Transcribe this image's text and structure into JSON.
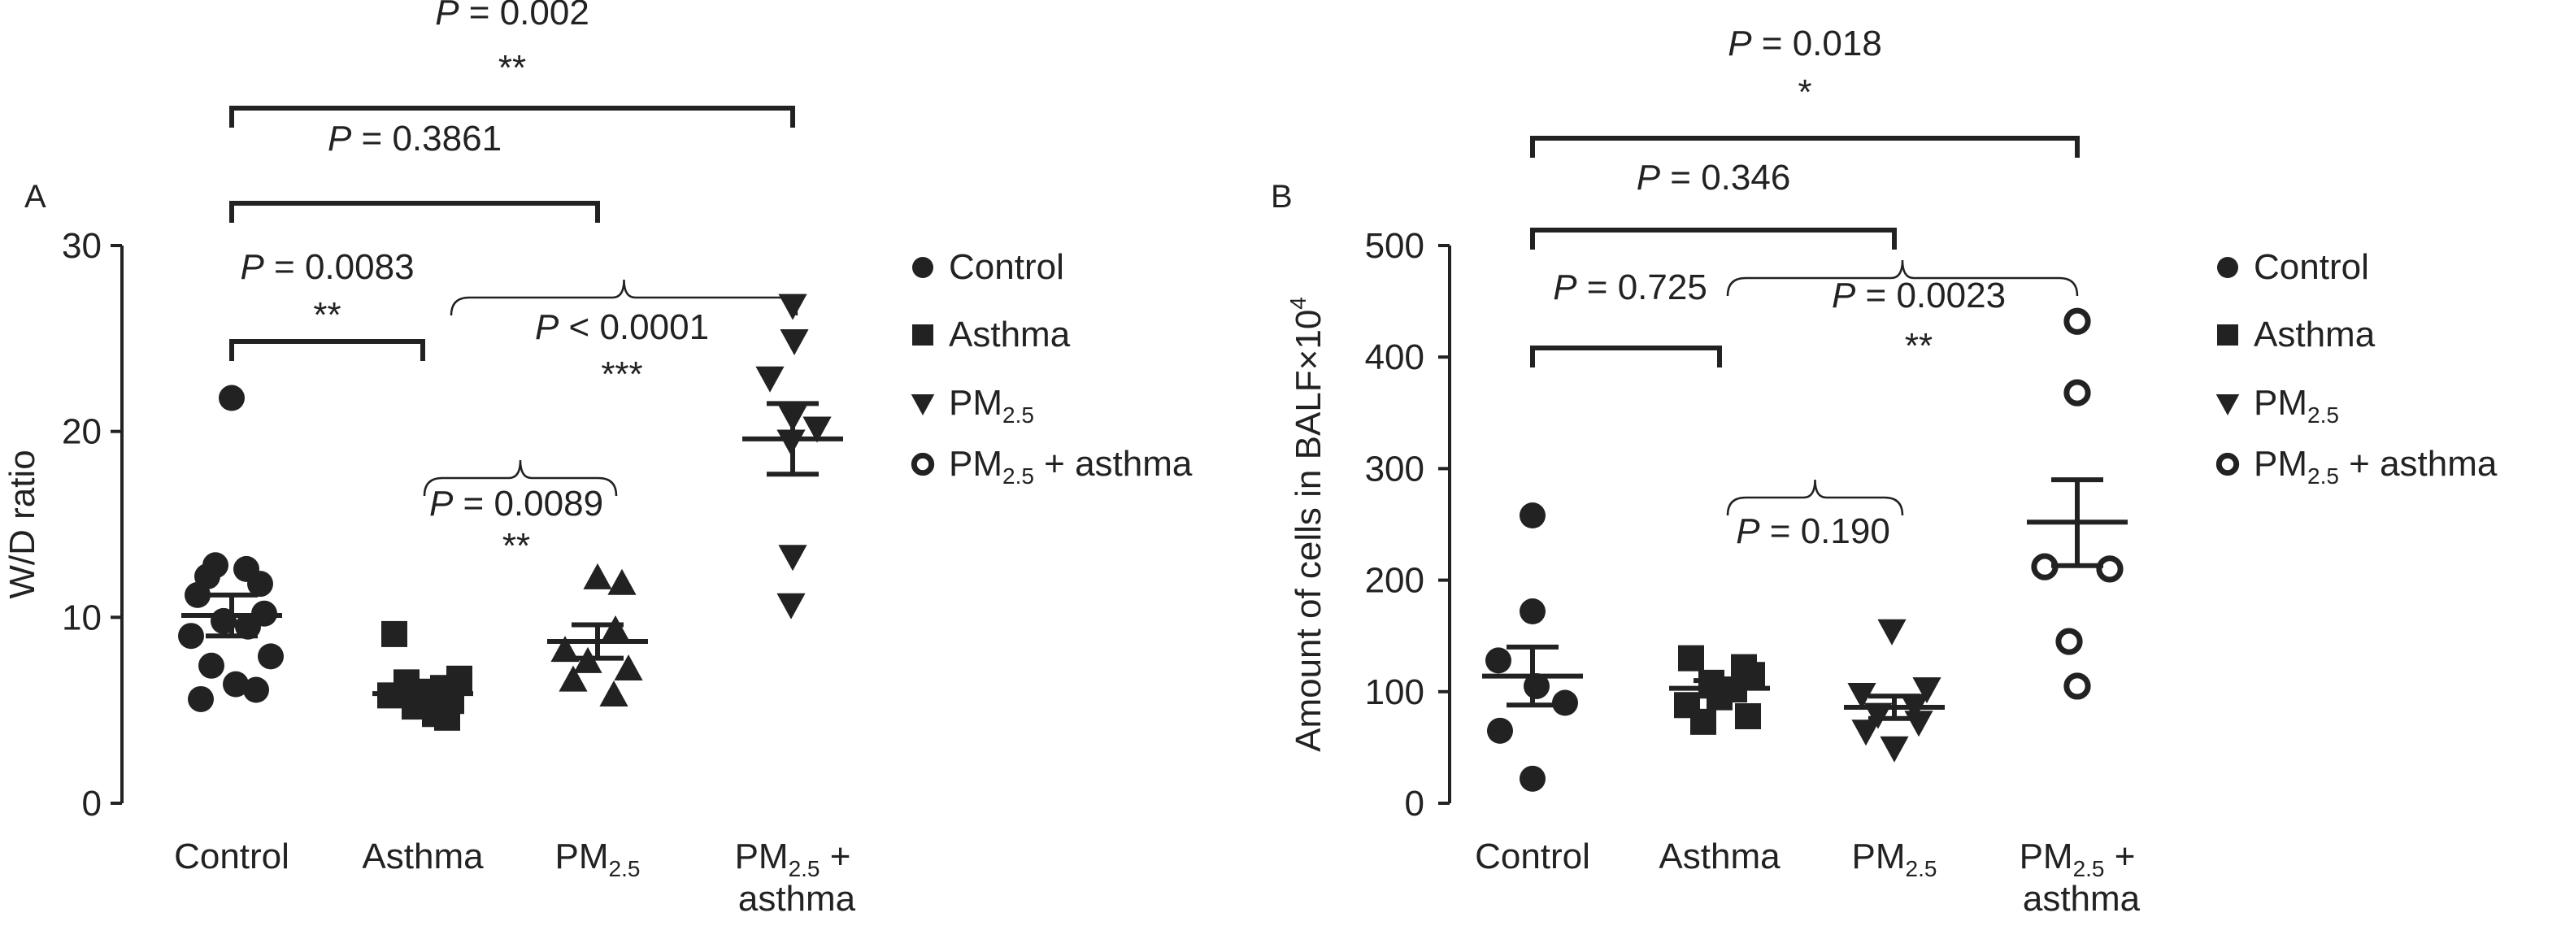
{
  "chart_data": [
    {
      "type": "scatter",
      "panel_label": "A",
      "ylabel": "W/D ratio",
      "ylim": [
        0,
        30
      ],
      "yticks": [
        0,
        10,
        20,
        30
      ],
      "groups": [
        {
          "label": "Control",
          "sub": "",
          "suffix": "",
          "line2": "",
          "marker": "circle",
          "values": [
            21.8,
            12.8,
            12.6,
            12.2,
            11.8,
            11.2,
            10.2,
            9.8,
            9.5,
            9.0,
            7.9,
            7.4,
            6.4,
            6.1,
            5.6
          ],
          "mean": 10.1,
          "sem_low": 9.0,
          "sem_high": 11.2
        },
        {
          "label": "Asthma",
          "sub": "",
          "suffix": "",
          "line2": "",
          "marker": "square",
          "values": [
            9.1,
            6.7,
            6.5,
            6.2,
            6.0,
            5.8,
            5.5,
            5.2,
            4.8,
            4.6
          ],
          "mean": 5.9,
          "sem_low": 5.4,
          "sem_high": 6.5
        },
        {
          "label": "PM",
          "sub": "2.5",
          "suffix": "",
          "line2": "",
          "marker": "triangle-up",
          "values": [
            12.1,
            11.8,
            9.3,
            8.2,
            7.6,
            7.2,
            6.6,
            5.8
          ],
          "mean": 8.7,
          "sem_low": 7.8,
          "sem_high": 9.6
        },
        {
          "label": "PM",
          "sub": "2.5",
          "suffix": " +",
          "line2": "asthma",
          "marker": "triangle-down",
          "values": [
            26.8,
            24.9,
            22.9,
            20.8,
            20.2,
            19.5,
            13.3,
            10.7
          ],
          "mean": 19.6,
          "sem_low": 17.7,
          "sem_high": 21.5
        }
      ],
      "legend": [
        {
          "label": "Control",
          "sub": "",
          "suffix": "",
          "marker": "circle"
        },
        {
          "label": "Asthma",
          "sub": "",
          "suffix": "",
          "marker": "square"
        },
        {
          "label": "PM",
          "sub": "2.5",
          "suffix": "",
          "marker": "triangle-down"
        },
        {
          "label": "PM",
          "sub": "2.5",
          "suffix": " + asthma",
          "marker": "ring"
        }
      ],
      "comparisons": [
        {
          "style": "bracket",
          "from": 0,
          "to": 3,
          "p_label": "P",
          "p_rest": " = 0.002",
          "stars": "**"
        },
        {
          "style": "bracket",
          "from": 0,
          "to": 2,
          "p_label": "P",
          "p_rest": " = 0.3861",
          "stars": ""
        },
        {
          "style": "bracket",
          "from": 0,
          "to": 1,
          "p_label": "P",
          "p_rest": " = 0.0083",
          "stars": "**"
        },
        {
          "style": "brace",
          "from": 1,
          "to": 3,
          "p_label": "P",
          "p_rest": " < 0.0001",
          "stars": "***"
        },
        {
          "style": "brace",
          "from": 1,
          "to": 2,
          "p_label": "P",
          "p_rest": " = 0.0089",
          "stars": "**"
        }
      ]
    },
    {
      "type": "scatter",
      "panel_label": "B",
      "ylabel": "Amount of cells in BALF×10",
      "ylabel_sup": "4",
      "ylim": [
        0,
        500
      ],
      "yticks": [
        0,
        100,
        200,
        300,
        400,
        500
      ],
      "groups": [
        {
          "label": "Control",
          "sub": "",
          "suffix": "",
          "line2": "",
          "marker": "circle",
          "values": [
            258,
            172,
            128,
            105,
            90,
            65,
            22
          ],
          "mean": 114,
          "sem_low": 88,
          "sem_high": 140
        },
        {
          "label": "Asthma",
          "sub": "",
          "suffix": "",
          "line2": "",
          "marker": "square",
          "values": [
            130,
            122,
            115,
            108,
            102,
            95,
            88,
            78,
            73
          ],
          "mean": 103,
          "sem_low": 96,
          "sem_high": 110
        },
        {
          "label": "PM",
          "sub": "2.5",
          "suffix": "",
          "line2": "",
          "marker": "triangle-down",
          "values": [
            155,
            103,
            98,
            88,
            80,
            73,
            65,
            50
          ],
          "mean": 86,
          "sem_low": 76,
          "sem_high": 96
        },
        {
          "label": "PM",
          "sub": "2.5",
          "suffix": " +",
          "line2": "asthma",
          "marker": "ring",
          "values": [
            432,
            368,
            212,
            210,
            145,
            105
          ],
          "mean": 252,
          "sem_low": 213,
          "sem_high": 290
        }
      ],
      "legend": [
        {
          "label": "Control",
          "sub": "",
          "suffix": "",
          "marker": "circle"
        },
        {
          "label": "Asthma",
          "sub": "",
          "suffix": "",
          "marker": "square"
        },
        {
          "label": "PM",
          "sub": "2.5",
          "suffix": "",
          "marker": "triangle-down"
        },
        {
          "label": "PM",
          "sub": "2.5",
          "suffix": " + asthma",
          "marker": "ring"
        }
      ],
      "comparisons": [
        {
          "style": "bracket",
          "from": 0,
          "to": 3,
          "p_label": "P",
          "p_rest": " = 0.018",
          "stars": "*"
        },
        {
          "style": "bracket",
          "from": 0,
          "to": 2,
          "p_label": "P",
          "p_rest": " = 0.346",
          "stars": ""
        },
        {
          "style": "bracket",
          "from": 0,
          "to": 1,
          "p_label": "P",
          "p_rest": " = 0.725",
          "stars": ""
        },
        {
          "style": "brace",
          "from": 1,
          "to": 3,
          "p_label": "P",
          "p_rest": " = 0.0023",
          "stars": "**"
        },
        {
          "style": "brace",
          "from": 1,
          "to": 2,
          "p_label": "P",
          "p_rest": " = 0.190",
          "stars": ""
        }
      ]
    }
  ]
}
